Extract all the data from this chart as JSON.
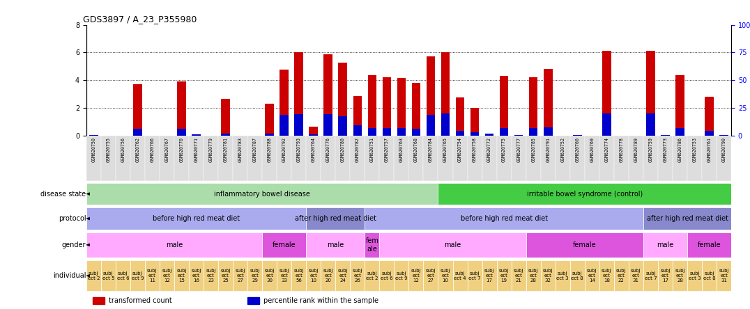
{
  "title": "GDS3897 / A_23_P355980",
  "samples": [
    "GSM620750",
    "GSM620755",
    "GSM620756",
    "GSM620762",
    "GSM620766",
    "GSM620767",
    "GSM620770",
    "GSM620771",
    "GSM620779",
    "GSM620781",
    "GSM620783",
    "GSM620787",
    "GSM620788",
    "GSM620792",
    "GSM620793",
    "GSM620764",
    "GSM620776",
    "GSM620780",
    "GSM620782",
    "GSM620751",
    "GSM620757",
    "GSM620763",
    "GSM620768",
    "GSM620784",
    "GSM620765",
    "GSM620754",
    "GSM620758",
    "GSM620772",
    "GSM620775",
    "GSM620777",
    "GSM620785",
    "GSM620791",
    "GSM620752",
    "GSM620760",
    "GSM620769",
    "GSM620774",
    "GSM620778",
    "GSM620789",
    "GSM620759",
    "GSM620773",
    "GSM620786",
    "GSM620753",
    "GSM620761",
    "GSM620790"
  ],
  "bar_heights": [
    0.0,
    0.0,
    0.0,
    3.7,
    0.0,
    0.0,
    3.9,
    0.0,
    0.0,
    2.65,
    0.0,
    0.0,
    2.3,
    4.75,
    6.0,
    0.65,
    5.85,
    5.25,
    2.85,
    4.35,
    4.2,
    4.15,
    3.8,
    5.7,
    6.0,
    2.75,
    2.0,
    0.0,
    4.3,
    0.0,
    4.2,
    4.8,
    0.0,
    0.0,
    0.0,
    6.1,
    0.0,
    0.0,
    6.1,
    0.0,
    4.35,
    0.0,
    2.8,
    0.0
  ],
  "percentile_heights": [
    0.05,
    0.0,
    0.0,
    0.5,
    0.0,
    0.0,
    0.5,
    0.1,
    0.0,
    0.15,
    0.0,
    0.0,
    0.15,
    1.5,
    1.55,
    0.1,
    1.55,
    1.4,
    0.75,
    0.55,
    0.55,
    0.55,
    0.5,
    1.5,
    1.6,
    0.35,
    0.25,
    0.15,
    0.55,
    0.05,
    0.55,
    0.6,
    0.0,
    0.05,
    0.0,
    1.6,
    0.0,
    0.0,
    1.6,
    0.05,
    0.55,
    0.0,
    0.35,
    0.05
  ],
  "ylim": [
    0,
    8
  ],
  "yticks": [
    0,
    2,
    4,
    6,
    8
  ],
  "right_yticks": [
    0,
    25,
    50,
    75,
    100
  ],
  "right_ytick_labels": [
    "0",
    "25",
    "50",
    "75",
    "100%"
  ],
  "bar_color": "#cc0000",
  "percentile_color": "#0000cc",
  "background_color": "#ffffff",
  "disease_state_segments": [
    {
      "label": "inflammatory bowel disease",
      "start": 0,
      "end": 24,
      "color": "#aaddaa"
    },
    {
      "label": "irritable bowel syndrome (control)",
      "start": 24,
      "end": 44,
      "color": "#44cc44"
    }
  ],
  "protocol_segments": [
    {
      "label": "before high red meat diet",
      "start": 0,
      "end": 15,
      "color": "#aaaaee"
    },
    {
      "label": "after high red meat diet",
      "start": 15,
      "end": 19,
      "color": "#8888cc"
    },
    {
      "label": "before high red meat diet",
      "start": 19,
      "end": 38,
      "color": "#aaaaee"
    },
    {
      "label": "after high red meat diet",
      "start": 38,
      "end": 44,
      "color": "#8888cc"
    }
  ],
  "gender_segments": [
    {
      "label": "male",
      "start": 0,
      "end": 12,
      "color": "#ffaaff"
    },
    {
      "label": "female",
      "start": 12,
      "end": 15,
      "color": "#dd55dd"
    },
    {
      "label": "male",
      "start": 15,
      "end": 19,
      "color": "#ffaaff"
    },
    {
      "label": "fem\nale",
      "start": 19,
      "end": 20,
      "color": "#dd55dd"
    },
    {
      "label": "male",
      "start": 20,
      "end": 30,
      "color": "#ffaaff"
    },
    {
      "label": "female",
      "start": 30,
      "end": 38,
      "color": "#dd55dd"
    },
    {
      "label": "male",
      "start": 38,
      "end": 41,
      "color": "#ffaaff"
    },
    {
      "label": "female",
      "start": 41,
      "end": 44,
      "color": "#dd55dd"
    }
  ],
  "individual_segments": [
    {
      "label": "subj\nect 2",
      "start": 0,
      "end": 1,
      "color": "#f0d080"
    },
    {
      "label": "subj\nect 5",
      "start": 1,
      "end": 2,
      "color": "#f0d080"
    },
    {
      "label": "subj\nect 6",
      "start": 2,
      "end": 3,
      "color": "#f0d080"
    },
    {
      "label": "subj\nect 9",
      "start": 3,
      "end": 4,
      "color": "#f0d080"
    },
    {
      "label": "subj\nect\n11",
      "start": 4,
      "end": 5,
      "color": "#f0d080"
    },
    {
      "label": "subj\nect\n12",
      "start": 5,
      "end": 6,
      "color": "#f0d080"
    },
    {
      "label": "subj\nect\n15",
      "start": 6,
      "end": 7,
      "color": "#f0d080"
    },
    {
      "label": "subj\nect\n16",
      "start": 7,
      "end": 8,
      "color": "#f0d080"
    },
    {
      "label": "subj\nect\n23",
      "start": 8,
      "end": 9,
      "color": "#f0d080"
    },
    {
      "label": "subj\nect\n25",
      "start": 9,
      "end": 10,
      "color": "#f0d080"
    },
    {
      "label": "subj\nect\n27",
      "start": 10,
      "end": 11,
      "color": "#f0d080"
    },
    {
      "label": "subj\nect\n29",
      "start": 11,
      "end": 12,
      "color": "#f0d080"
    },
    {
      "label": "subj\nect\n30",
      "start": 12,
      "end": 13,
      "color": "#f0d080"
    },
    {
      "label": "subj\nect\n33",
      "start": 13,
      "end": 14,
      "color": "#f0d080"
    },
    {
      "label": "subj\nect\n56",
      "start": 14,
      "end": 15,
      "color": "#f0d080"
    },
    {
      "label": "subj\nect\n10",
      "start": 15,
      "end": 16,
      "color": "#f0d080"
    },
    {
      "label": "subj\nect\n20",
      "start": 16,
      "end": 17,
      "color": "#f0d080"
    },
    {
      "label": "subj\nect\n24",
      "start": 17,
      "end": 18,
      "color": "#f0d080"
    },
    {
      "label": "subj\nect\n26",
      "start": 18,
      "end": 19,
      "color": "#f0d080"
    },
    {
      "label": "subj\nect 2",
      "start": 19,
      "end": 20,
      "color": "#f0d080"
    },
    {
      "label": "subj\nect 6",
      "start": 20,
      "end": 21,
      "color": "#f0d080"
    },
    {
      "label": "subj\nect 9",
      "start": 21,
      "end": 22,
      "color": "#f0d080"
    },
    {
      "label": "subj\nect\n12",
      "start": 22,
      "end": 23,
      "color": "#f0d080"
    },
    {
      "label": "subj\nect\n27",
      "start": 23,
      "end": 24,
      "color": "#f0d080"
    },
    {
      "label": "subj\nect\n10",
      "start": 24,
      "end": 25,
      "color": "#f0d080"
    },
    {
      "label": "subj\nect 4",
      "start": 25,
      "end": 26,
      "color": "#f0d080"
    },
    {
      "label": "subj\nect 7",
      "start": 26,
      "end": 27,
      "color": "#f0d080"
    },
    {
      "label": "subj\nect\n17",
      "start": 27,
      "end": 28,
      "color": "#f0d080"
    },
    {
      "label": "subj\nect\n19",
      "start": 28,
      "end": 29,
      "color": "#f0d080"
    },
    {
      "label": "subj\nect\n21",
      "start": 29,
      "end": 30,
      "color": "#f0d080"
    },
    {
      "label": "subj\nect\n28",
      "start": 30,
      "end": 31,
      "color": "#f0d080"
    },
    {
      "label": "subj\nect\n32",
      "start": 31,
      "end": 32,
      "color": "#f0d080"
    },
    {
      "label": "subj\nect 3",
      "start": 32,
      "end": 33,
      "color": "#f0d080"
    },
    {
      "label": "subj\nect 8",
      "start": 33,
      "end": 34,
      "color": "#f0d080"
    },
    {
      "label": "subj\nect\n14",
      "start": 34,
      "end": 35,
      "color": "#f0d080"
    },
    {
      "label": "subj\nect\n18",
      "start": 35,
      "end": 36,
      "color": "#f0d080"
    },
    {
      "label": "subj\nect\n22",
      "start": 36,
      "end": 37,
      "color": "#f0d080"
    },
    {
      "label": "subj\nect\n31",
      "start": 37,
      "end": 38,
      "color": "#f0d080"
    },
    {
      "label": "subj\nect 7",
      "start": 38,
      "end": 39,
      "color": "#f0d080"
    },
    {
      "label": "subj\nect\n17",
      "start": 39,
      "end": 40,
      "color": "#f0d080"
    },
    {
      "label": "subj\nect\n28",
      "start": 40,
      "end": 41,
      "color": "#f0d080"
    },
    {
      "label": "subj\nect 3",
      "start": 41,
      "end": 42,
      "color": "#f0d080"
    },
    {
      "label": "subj\nect 8",
      "start": 42,
      "end": 43,
      "color": "#f0d080"
    },
    {
      "label": "subj\nect\n31",
      "start": 43,
      "end": 44,
      "color": "#f0d080"
    }
  ],
  "legend_items": [
    {
      "label": "transformed count",
      "color": "#cc0000"
    },
    {
      "label": "percentile rank within the sample",
      "color": "#0000cc"
    }
  ]
}
